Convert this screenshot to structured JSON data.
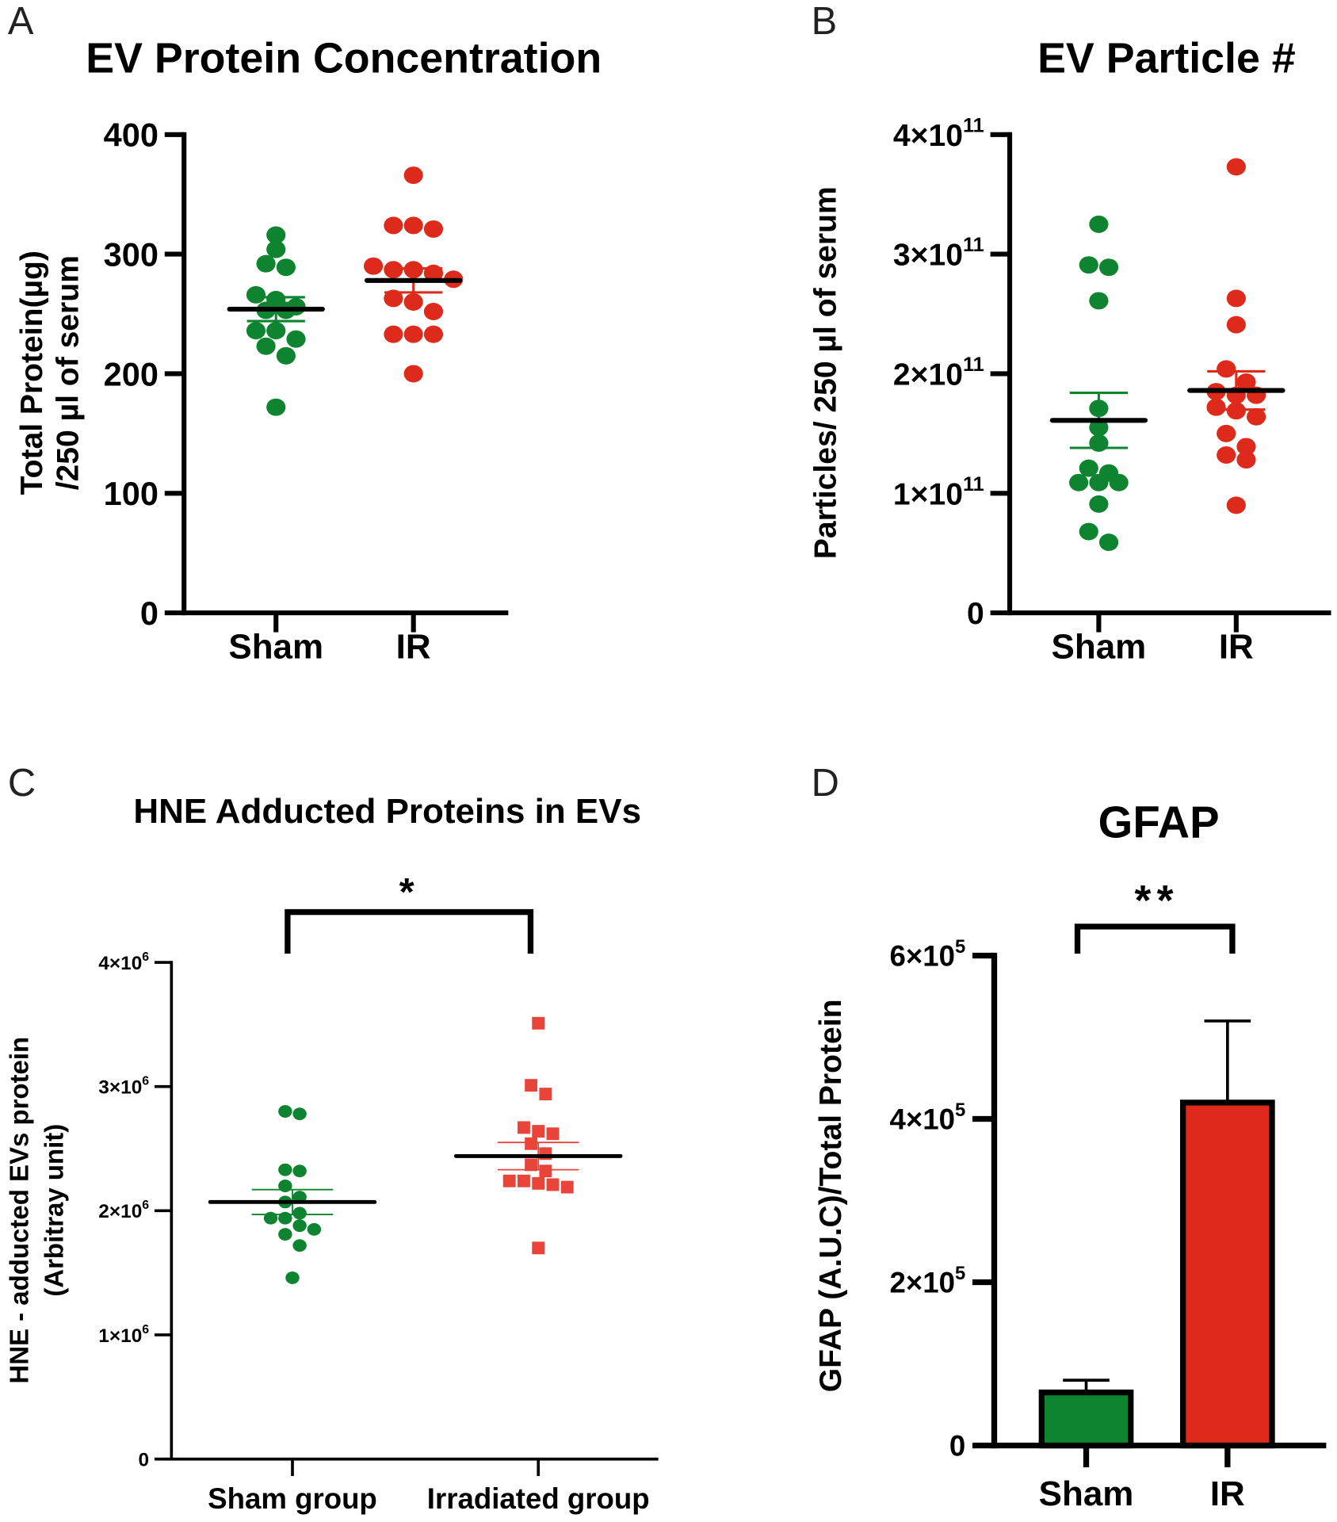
{
  "colors": {
    "sham": "#0e8430",
    "ir": "#dd2a1b",
    "ir_light": "#e8443a",
    "axis": "#000000"
  },
  "chart_data": [
    {
      "panel": "A",
      "type": "scatter",
      "title": "EV Protein Concentration",
      "ylabel": [
        "Total Protein(µg)",
        "/250 µl of serum"
      ],
      "categories": [
        "Sham",
        "IR"
      ],
      "ylim": [
        0,
        400
      ],
      "yticks": [
        {
          "base": "0"
        },
        {
          "base": "100"
        },
        {
          "base": "200"
        },
        {
          "base": "300"
        },
        {
          "base": "400"
        }
      ],
      "ytick_values": [
        0,
        100,
        200,
        300,
        400
      ],
      "series": [
        {
          "name": "Sham",
          "values": [
            316,
            304,
            292,
            289,
            266,
            262,
            256,
            253,
            253,
            236,
            236,
            229,
            223,
            215,
            172
          ],
          "mean": 254,
          "sem": 10
        },
        {
          "name": "IR",
          "values": [
            366,
            324,
            324,
            321,
            290,
            287,
            287,
            284,
            279,
            263,
            260,
            252,
            233,
            233,
            233,
            200
          ],
          "mean": 278,
          "sem": 10
        }
      ]
    },
    {
      "panel": "B",
      "type": "scatter",
      "title": "EV Particle #",
      "ylabel": [
        "Particles/ 250 µl of serum"
      ],
      "categories": [
        "Sham",
        "IR"
      ],
      "ylim": [
        0,
        400000000000.0
      ],
      "yticks": [
        {
          "base": "0"
        },
        {
          "base": "1×10",
          "exp": "11"
        },
        {
          "base": "2×10",
          "exp": "11"
        },
        {
          "base": "3×10",
          "exp": "11"
        },
        {
          "base": "4×10",
          "exp": "11"
        }
      ],
      "ytick_values": [
        0,
        100000000000.0,
        200000000000.0,
        300000000000.0,
        400000000000.0
      ],
      "series": [
        {
          "name": "Sham",
          "values": [
            325000000000.0,
            291000000000.0,
            289000000000.0,
            261000000000.0,
            171000000000.0,
            155000000000.0,
            142000000000.0,
            121000000000.0,
            117000000000.0,
            109000000000.0,
            109000000000.0,
            109000000000.0,
            91000000000.0,
            68000000000.0,
            59000000000.0
          ],
          "mean": 161000000000.0,
          "sem": 23000000000.0
        },
        {
          "name": "IR",
          "values": [
            373000000000.0,
            263000000000.0,
            241000000000.0,
            204000000000.0,
            193000000000.0,
            185000000000.0,
            182000000000.0,
            182000000000.0,
            172000000000.0,
            169000000000.0,
            164000000000.0,
            150000000000.0,
            139000000000.0,
            132000000000.0,
            128000000000.0,
            90000000000.0
          ],
          "mean": 186000000000.0,
          "sem": 16000000000.0
        }
      ]
    },
    {
      "panel": "C",
      "type": "scatter",
      "title": "HNE Adducted Proteins in EVs",
      "ylabel": [
        "HNE - adducted EVs protein",
        "(Arbitray unit)"
      ],
      "categories": [
        "Sham group",
        "Irradiated group"
      ],
      "ylim": [
        0,
        4000000.0
      ],
      "yticks": [
        {
          "base": "0"
        },
        {
          "base": "1×10",
          "exp": "6"
        },
        {
          "base": "2×10",
          "exp": "6"
        },
        {
          "base": "3×10",
          "exp": "6"
        },
        {
          "base": "4×10",
          "exp": "6"
        }
      ],
      "ytick_values": [
        0,
        1000000.0,
        2000000.0,
        3000000.0,
        4000000.0
      ],
      "significance": "*",
      "series": [
        {
          "name": "Sham group",
          "values": [
            2800000.0,
            2780000.0,
            2330000.0,
            2320000.0,
            2200000.0,
            2110000.0,
            2070000.0,
            1980000.0,
            1940000.0,
            1940000.0,
            1880000.0,
            1850000.0,
            1810000.0,
            1720000.0,
            1460000.0
          ],
          "mean": 2070000.0,
          "sem": 100000.0
        },
        {
          "name": "Irradiated group",
          "values": [
            3510000.0,
            3010000.0,
            2940000.0,
            2670000.0,
            2640000.0,
            2620000.0,
            2540000.0,
            2460000.0,
            2370000.0,
            2320000.0,
            2240000.0,
            2240000.0,
            2220000.0,
            2210000.0,
            2190000.0,
            1700000.0
          ],
          "mean": 2440000.0,
          "sem": 110000.0
        }
      ]
    },
    {
      "panel": "D",
      "type": "bar",
      "title": "GFAP",
      "ylabel": [
        "GFAP (A.U.C)/Total Protein"
      ],
      "categories": [
        "Sham",
        "IR"
      ],
      "ylim": [
        0,
        600000.0
      ],
      "yticks": [
        {
          "base": "0"
        },
        {
          "base": "2×10",
          "exp": "5"
        },
        {
          "base": "4×10",
          "exp": "5"
        },
        {
          "base": "6×10",
          "exp": "5"
        }
      ],
      "ytick_values": [
        0,
        200000.0,
        400000.0,
        600000.0
      ],
      "significance": "**",
      "values": [
        65000.0,
        420000.0
      ],
      "errors": [
        15000.0,
        100000.0
      ]
    }
  ]
}
